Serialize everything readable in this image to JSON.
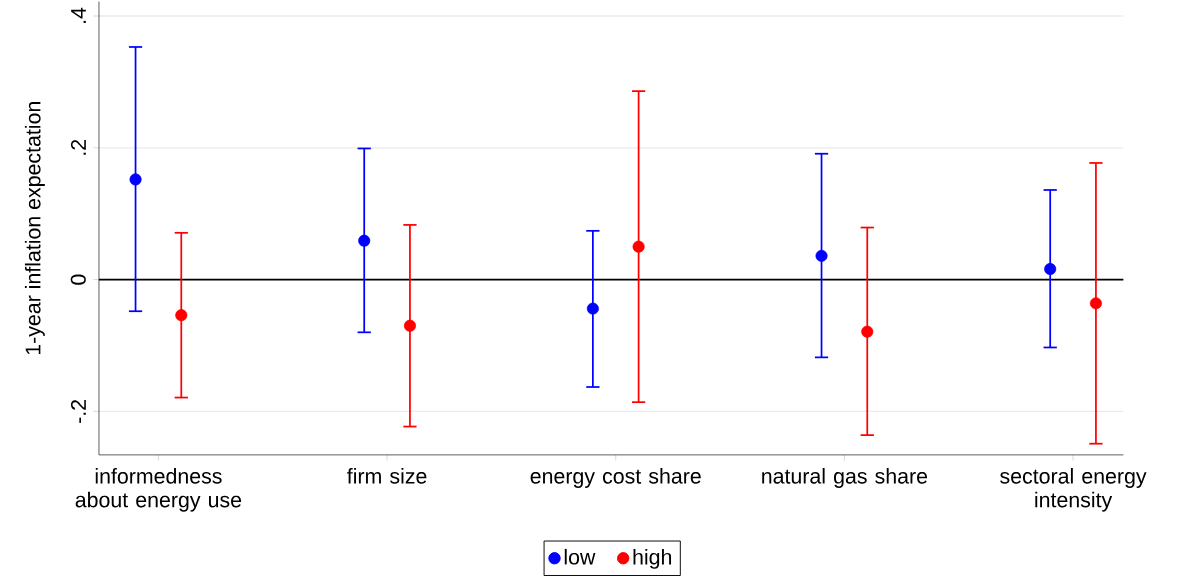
{
  "chart_data": {
    "type": "scatter",
    "ylabel": "1-year inflation expectation",
    "categories": [
      "informedness about energy use",
      "firm size",
      "energy cost share",
      "natural gas share",
      "sectoral energy intensity"
    ],
    "series": [
      {
        "name": "low",
        "color": "#0000ff",
        "values": [
          0.152,
          0.059,
          -0.044,
          0.036,
          0.016
        ],
        "errors": [
          [
            -0.048,
            0.353
          ],
          [
            -0.08,
            0.199
          ],
          [
            -0.163,
            0.074
          ],
          [
            -0.118,
            0.191
          ],
          [
            -0.103,
            0.136
          ]
        ]
      },
      {
        "name": "high",
        "color": "#ff0000",
        "values": [
          -0.054,
          -0.07,
          0.05,
          -0.079,
          -0.036
        ],
        "errors": [
          [
            -0.179,
            0.071
          ],
          [
            -0.223,
            0.083
          ],
          [
            -0.186,
            0.286
          ],
          [
            -0.236,
            0.079
          ],
          [
            -0.249,
            0.177
          ]
        ]
      }
    ],
    "ylim": [
      -0.266,
      0.422
    ],
    "yticks": [
      {
        "value": -0.2,
        "label": "-.2"
      },
      {
        "value": 0,
        "label": "0"
      },
      {
        "value": 0.2,
        "label": ".2"
      },
      {
        "value": 0.4,
        "label": ".4"
      }
    ],
    "grid": "y",
    "legend": "bottom",
    "marker": "circle",
    "ref_lines": [
      {
        "axis": "y",
        "value": 0,
        "color": "#000000"
      }
    ]
  }
}
